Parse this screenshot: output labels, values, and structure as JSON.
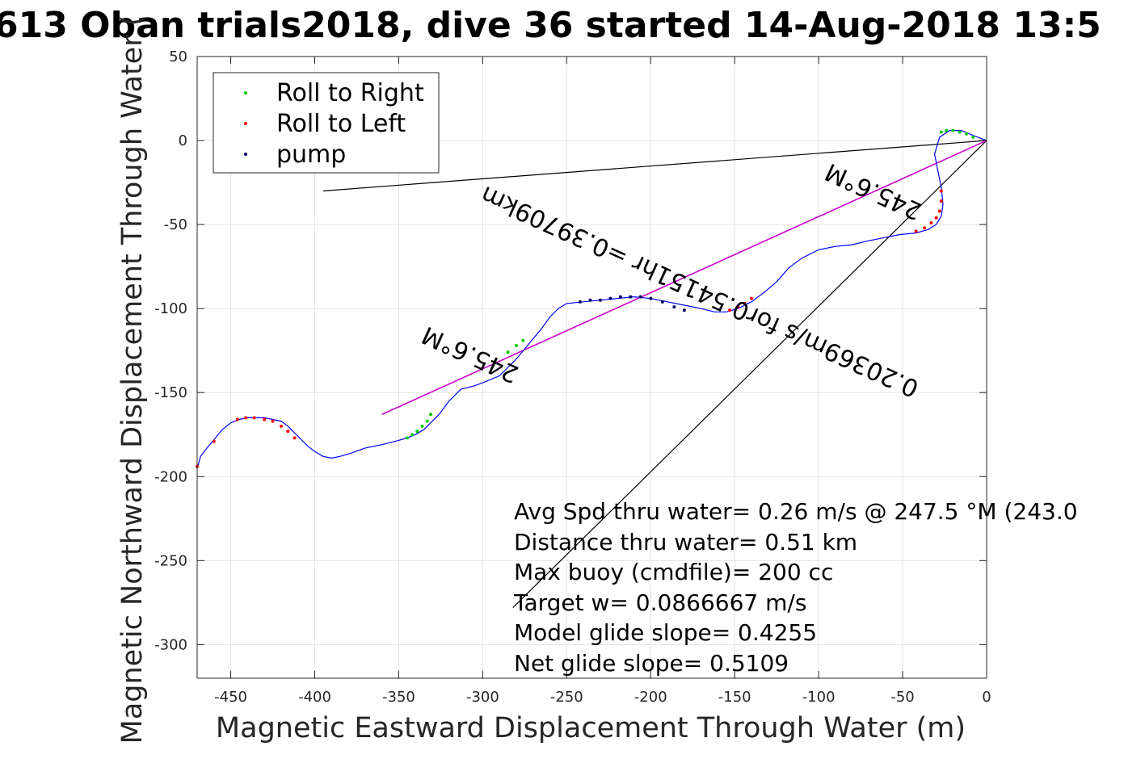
{
  "chart_data": {
    "type": "line",
    "title": "613 Oban trials2018, dive 36 started 14-Aug-2018 13:5",
    "xlabel": "Magnetic Eastward Displacement Through Water (m)",
    "ylabel": "Magnetic Northward Displacement Through Water (",
    "xlim": [
      -470,
      0
    ],
    "ylim": [
      -320,
      50
    ],
    "xticks": [
      "-450",
      "-400",
      "-350",
      "-300",
      "-250",
      "-200",
      "-150",
      "-100",
      "-50",
      "0"
    ],
    "yticks": [
      "50",
      "0",
      "-50",
      "-100",
      "-150",
      "-200",
      "-250",
      "-300"
    ],
    "grid": true,
    "legend": {
      "placement": "top-left",
      "entries": [
        {
          "label": "Roll to Right",
          "color": "#00cc00"
        },
        {
          "label": "Roll to Left",
          "color": "#ff0000"
        },
        {
          "label": "pump",
          "color": "#000066"
        }
      ]
    },
    "track": {
      "color": "#0000ff",
      "x": [
        0,
        -8,
        -15,
        -22,
        -28,
        -31,
        -29,
        -27,
        -26,
        -27,
        -30,
        -35,
        -42,
        -52,
        -62,
        -72,
        -80,
        -90,
        -100,
        -110,
        -118,
        -125,
        -132,
        -140,
        -148,
        -155,
        -162,
        -170,
        -180,
        -190,
        -200,
        -210,
        -220,
        -230,
        -240,
        -250,
        -255,
        -260,
        -265,
        -270,
        -275,
        -280,
        -285,
        -290,
        -297,
        -305,
        -313,
        -320,
        -326,
        -331,
        -335,
        -340,
        -345,
        -352,
        -360,
        -370,
        -378,
        -385,
        -390,
        -395,
        -400,
        -404,
        -408,
        -412,
        -416,
        -420,
        -425,
        -430,
        -435,
        -440,
        -445,
        -450,
        -455,
        -460,
        -465,
        -468,
        -470
      ],
      "y": [
        0,
        3,
        6,
        6,
        2,
        -8,
        -18,
        -28,
        -38,
        -45,
        -50,
        -53,
        -55,
        -56,
        -58,
        -60,
        -62,
        -63,
        -65,
        -70,
        -76,
        -84,
        -90,
        -96,
        -100,
        -102,
        -102,
        -100,
        -98,
        -96,
        -94,
        -93,
        -94,
        -95,
        -96,
        -97,
        -100,
        -105,
        -112,
        -118,
        -124,
        -130,
        -135,
        -140,
        -143,
        -146,
        -148,
        -155,
        -163,
        -168,
        -172,
        -175,
        -177,
        -179,
        -181,
        -183,
        -186,
        -188,
        -189,
        -188,
        -185,
        -182,
        -178,
        -174,
        -170,
        -167,
        -166,
        -165,
        -165,
        -165,
        -166,
        -168,
        -172,
        -178,
        -184,
        -188,
        -195
      ]
    },
    "roll_right_x": [
      -8,
      -12,
      -16,
      -20,
      -24,
      -27,
      -331,
      -333,
      -336,
      -339,
      -342,
      -345,
      -285,
      -280,
      -276
    ],
    "roll_right_y": [
      2,
      4,
      5,
      6,
      6,
      5,
      -163,
      -167,
      -170,
      -173,
      -175,
      -177,
      -126,
      -122,
      -119
    ],
    "roll_left_x": [
      -27,
      -27,
      -28,
      -30,
      -33,
      -37,
      -42,
      -140,
      -144,
      -148,
      -153,
      -412,
      -416,
      -420,
      -425,
      -430,
      -436,
      -441,
      -446,
      -460,
      -470
    ],
    "roll_left_y": [
      -30,
      -36,
      -42,
      -46,
      -49,
      -52,
      -54,
      -94,
      -97,
      -99,
      -101,
      -177,
      -173,
      -170,
      -167,
      -166,
      -165,
      -165,
      -166,
      -179,
      -194
    ],
    "pump_x": [
      -180,
      -186,
      -193,
      -200,
      -206,
      -212,
      -218,
      -224,
      -230,
      -236,
      -242
    ],
    "pump_y": [
      -101,
      -99,
      -96,
      -94,
      -93,
      -93,
      -93,
      -94,
      -95,
      -95,
      -96
    ],
    "lines": [
      {
        "name": "heading-line",
        "color": "#000000",
        "x": [
          0,
          -395
        ],
        "y": [
          0,
          -30
        ]
      },
      {
        "name": "heading-line-2",
        "color": "#000000",
        "x": [
          0,
          -282
        ],
        "y": [
          0,
          -278
        ]
      },
      {
        "name": "net-track-line",
        "color": "#cc00cc",
        "x": [
          0,
          -360
        ],
        "y": [
          0,
          -163
        ]
      }
    ],
    "rotated_labels": {
      "speed": "0.20369m/s for0.54151hr =0.39709km",
      "heading_start": "245.6°M",
      "heading_end": "245.6°M"
    },
    "annotations": [
      "Avg Spd thru water=  0.26 m/s @ 247.5 °M (243.0",
      "Distance thru water=  0.51 km",
      "Max buoy (cmdfile)= 200 cc",
      "Target w= 0.0866667 m/s",
      "Model glide slope= 0.4255",
      "Net glide slope= 0.5109"
    ]
  }
}
